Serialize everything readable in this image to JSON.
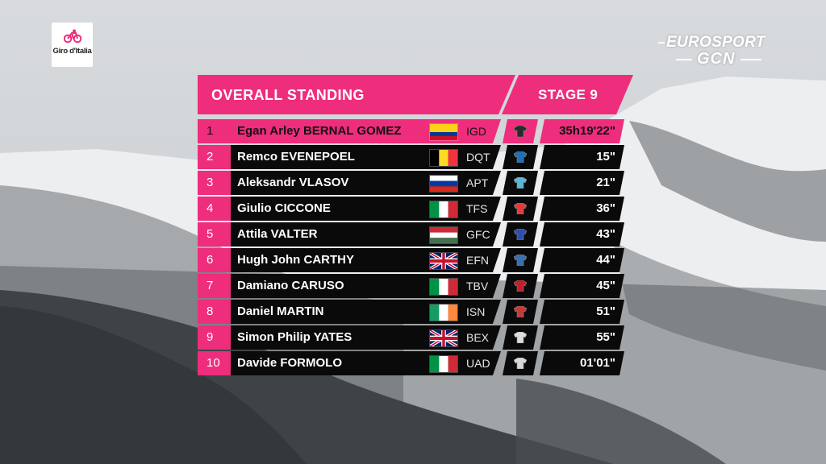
{
  "logo": {
    "text": "Giro d'Italia",
    "color": "#ee2d7c"
  },
  "broadcaster": {
    "line1": "EUROSPORT",
    "line2": "GCN"
  },
  "standings": {
    "title": "OVERALL STANDING",
    "stage": "STAGE 9",
    "accent": "#ee2d7c",
    "rows": [
      {
        "pos": "1",
        "name": "Egan Arley BERNAL GOMEZ",
        "flag": "colombia",
        "team": "IGD",
        "time": "35h19'22\"",
        "jersey": "#2a2a2a"
      },
      {
        "pos": "2",
        "name": "Remco EVENEPOEL",
        "flag": "belgium",
        "team": "DQT",
        "time": "15\"",
        "jersey": "#1e6fb8"
      },
      {
        "pos": "3",
        "name": "Aleksandr VLASOV",
        "flag": "russia",
        "team": "APT",
        "time": "21\"",
        "jersey": "#5ab6d6"
      },
      {
        "pos": "4",
        "name": "Giulio CICCONE",
        "flag": "italy",
        "team": "TFS",
        "time": "36\"",
        "jersey": "#e23b3b"
      },
      {
        "pos": "5",
        "name": "Attila VALTER",
        "flag": "hungary",
        "team": "GFC",
        "time": "43\"",
        "jersey": "#2b4fb0"
      },
      {
        "pos": "6",
        "name": "Hugh John CARTHY",
        "flag": "uk",
        "team": "EFN",
        "time": "44\"",
        "jersey": "#3a6fb0"
      },
      {
        "pos": "7",
        "name": "Damiano CARUSO",
        "flag": "italy",
        "team": "TBV",
        "time": "45\"",
        "jersey": "#c0202a"
      },
      {
        "pos": "8",
        "name": "Daniel MARTIN",
        "flag": "ireland",
        "team": "ISN",
        "time": "51\"",
        "jersey": "#c23a3a"
      },
      {
        "pos": "9",
        "name": "Simon Philip YATES",
        "flag": "uk",
        "team": "BEX",
        "time": "55\"",
        "jersey": "#dddddd"
      },
      {
        "pos": "10",
        "name": "Davide FORMOLO",
        "flag": "italy",
        "team": "UAD",
        "time": "01'01\"",
        "jersey": "#d8d8d8"
      }
    ]
  }
}
